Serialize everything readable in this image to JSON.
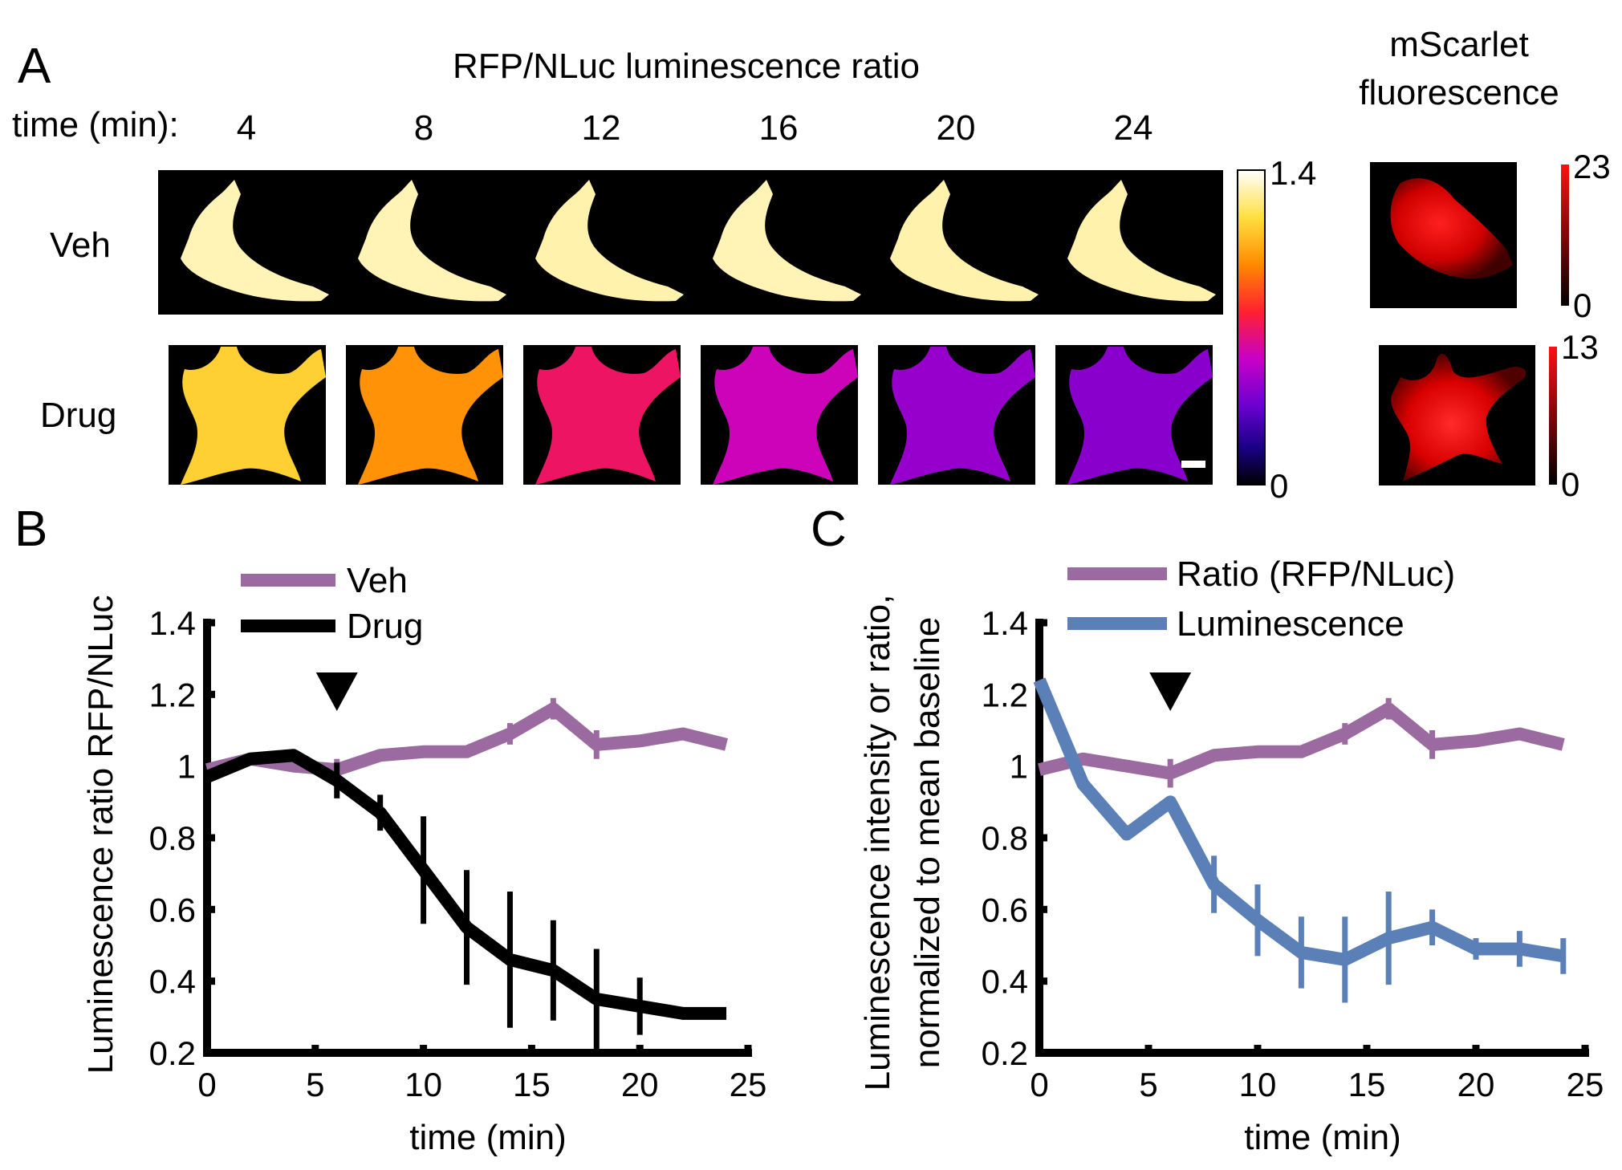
{
  "panel_a": {
    "letter": "A",
    "title": "RFP/NLuc luminescence ratio",
    "time_label": "time (min):",
    "times": [
      "4",
      "8",
      "12",
      "16",
      "20",
      "24"
    ],
    "rows": [
      {
        "label": "Veh",
        "levels": [
          1.32,
          1.32,
          1.31,
          1.32,
          1.31,
          1.31
        ]
      },
      {
        "label": "Drug",
        "levels": [
          1.15,
          1.0,
          0.7,
          0.58,
          0.45,
          0.42
        ]
      }
    ],
    "colorbar": {
      "max_label": "1.4",
      "min_label": "0"
    },
    "fluor_title_line1": "mScarlet",
    "fluor_title_line2": "fluorescence",
    "fluor_veh_bar": {
      "max_label": "23",
      "min_label": "0"
    },
    "fluor_drug_bar": {
      "max_label": "13",
      "min_label": "0"
    }
  },
  "colors": {
    "veh": "#9b6aa0",
    "drug": "#000000",
    "luminescence": "#5b80b8"
  },
  "chart_data": [
    {
      "id": "B",
      "panel_letter": "B",
      "type": "line",
      "title": "",
      "xlabel": "time (min)",
      "ylabel": "Luminescence ratio RFP/NLuc",
      "xlim": [
        0,
        25
      ],
      "ylim": [
        0.2,
        1.4
      ],
      "xticks": [
        0,
        5,
        10,
        15,
        20,
        25
      ],
      "xtick_labels": [
        "0",
        "5",
        "10",
        "15",
        "20",
        "25"
      ],
      "yticks": [
        0.2,
        0.4,
        0.6,
        0.8,
        1.0,
        1.2,
        1.4
      ],
      "ytick_labels": [
        "0.2",
        "0.4",
        "0.6",
        "0.8",
        "1",
        "1.2",
        "1.4"
      ],
      "legend_position": "top-left",
      "annotation": {
        "type": "arrowhead",
        "x": 6
      },
      "series": [
        {
          "name": "Veh",
          "color": "#9b6aa0",
          "x": [
            0,
            2,
            4,
            6,
            8,
            10,
            12,
            14,
            16,
            18,
            20,
            22,
            24
          ],
          "y": [
            0.99,
            1.02,
            1.0,
            0.99,
            1.03,
            1.04,
            1.04,
            1.09,
            1.16,
            1.06,
            1.07,
            1.09,
            1.06
          ],
          "err": [
            0,
            0,
            0,
            0.03,
            0,
            0,
            0,
            0.03,
            0.03,
            0.04,
            0,
            0,
            0
          ]
        },
        {
          "name": "Drug",
          "color": "#000000",
          "x": [
            0,
            2,
            4,
            6,
            8,
            10,
            12,
            14,
            16,
            18,
            20,
            22,
            24
          ],
          "y": [
            0.97,
            1.02,
            1.03,
            0.96,
            0.87,
            0.71,
            0.55,
            0.46,
            0.43,
            0.35,
            0.33,
            0.31,
            0.31
          ],
          "err": [
            0.02,
            0,
            0,
            0.05,
            0.05,
            0.15,
            0.16,
            0.19,
            0.14,
            0.14,
            0.08,
            0,
            0
          ]
        }
      ]
    },
    {
      "id": "C",
      "panel_letter": "C",
      "type": "line",
      "title": "",
      "xlabel": "time (min)",
      "ylabel": "Luminescence intensity or ratio,",
      "ylabel2": "normalized to mean baseline",
      "xlim": [
        0,
        25
      ],
      "ylim": [
        0.2,
        1.4
      ],
      "xticks": [
        0,
        5,
        10,
        15,
        20,
        25
      ],
      "xtick_labels": [
        "0",
        "5",
        "10",
        "15",
        "20",
        "25"
      ],
      "yticks": [
        0.2,
        0.4,
        0.6,
        0.8,
        1.0,
        1.2,
        1.4
      ],
      "ytick_labels": [
        "0.2",
        "0.4",
        "0.6",
        "0.8",
        "1",
        "1.2",
        "1.4"
      ],
      "legend_position": "top",
      "annotation": {
        "type": "arrowhead",
        "x": 6
      },
      "series": [
        {
          "name": "Ratio (RFP/NLuc)",
          "color": "#9b6aa0",
          "x": [
            0,
            2,
            4,
            6,
            8,
            10,
            12,
            14,
            16,
            18,
            20,
            22,
            24
          ],
          "y": [
            0.99,
            1.02,
            1.0,
            0.98,
            1.03,
            1.04,
            1.04,
            1.09,
            1.16,
            1.06,
            1.07,
            1.09,
            1.06
          ],
          "err": [
            0,
            0,
            0,
            0.04,
            0,
            0,
            0,
            0.03,
            0.03,
            0.04,
            0,
            0,
            0
          ]
        },
        {
          "name": "Luminescence",
          "color": "#5b80b8",
          "x": [
            0,
            2,
            4,
            6,
            8,
            10,
            12,
            14,
            16,
            18,
            20,
            22,
            24
          ],
          "y": [
            1.24,
            0.95,
            0.81,
            0.9,
            0.67,
            0.57,
            0.48,
            0.46,
            0.52,
            0.55,
            0.49,
            0.49,
            0.47
          ],
          "err": [
            0,
            0,
            0,
            0,
            0.08,
            0.1,
            0.1,
            0.12,
            0.13,
            0.05,
            0.03,
            0.05,
            0.05
          ]
        }
      ]
    }
  ]
}
